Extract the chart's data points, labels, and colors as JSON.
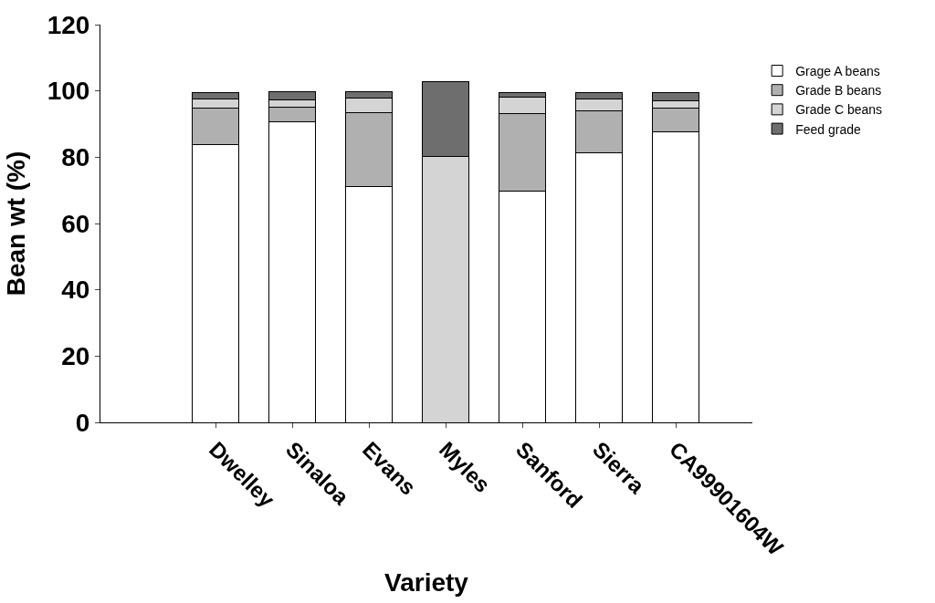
{
  "chart_data": {
    "type": "bar",
    "stacked": true,
    "xlabel": "Variety",
    "ylabel": "Bean wt (%)",
    "categories": [
      "Dwelley",
      "Sinaloa",
      "Evans",
      "Myles",
      "Sanford",
      "Sierra",
      "CA99901604W"
    ],
    "series": [
      {
        "name": "Grage A beans",
        "color": "#ffffff",
        "values": [
          83.8,
          90.7,
          71.2,
          0,
          69.9,
          81.2,
          87.7
        ]
      },
      {
        "name": "Grade B beans",
        "color": "#b0b0b0",
        "values": [
          11.0,
          4.5,
          22.3,
          0,
          23.4,
          12.7,
          7.0
        ]
      },
      {
        "name": "Grade C beans",
        "color": "#d4d4d4",
        "values": [
          2.7,
          2.1,
          4.3,
          80.2,
          4.9,
          3.8,
          2.4
        ]
      },
      {
        "name": "Feed grade",
        "color": "#6e6e6e",
        "values": [
          1.9,
          2.4,
          2.0,
          22.5,
          1.4,
          1.9,
          2.5
        ]
      }
    ],
    "ylim": [
      0,
      120
    ],
    "yticks": [
      0,
      20,
      40,
      60,
      80,
      100,
      120
    ],
    "legend": "top right"
  }
}
